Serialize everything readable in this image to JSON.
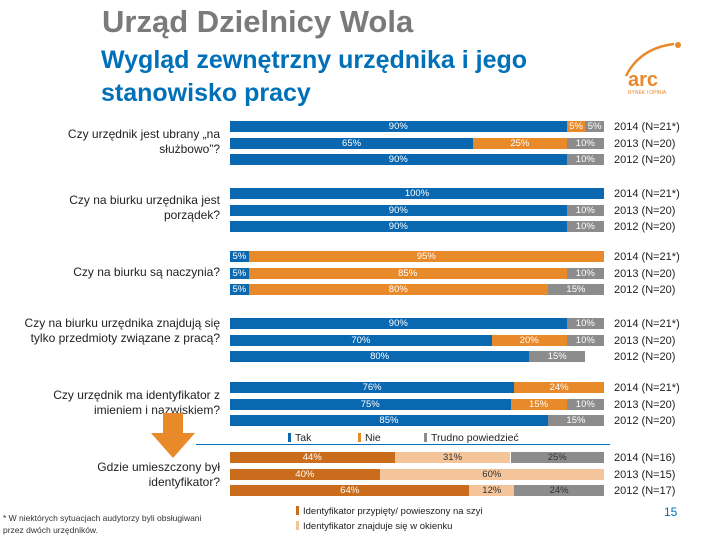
{
  "header": {
    "title": "Urząd Dzielnicy Wola",
    "subtitle": "Wygląd zewnętrzny urzędnika i jego stanowisko pracy"
  },
  "colors": {
    "tak": "#0a68b0",
    "nie": "#e8892a",
    "trudno": "#8c8c8c",
    "loc1": "#c96c1c",
    "loc2": "#f4c49a",
    "loc3": "#8c8c8c"
  },
  "logo": {
    "text": "arc",
    "tagline": "RYNEK I OPINIA"
  },
  "chart_data": [
    {
      "type": "bar",
      "stacked": "percent",
      "categories": [
        "Tak",
        "Nie",
        "Trudno powiedzieć"
      ],
      "title": "",
      "groups": [
        {
          "question": "Czy urzędnik jest ubrany „na służbowo”?",
          "years": [
            "2014 (N=21*)",
            "2013 (N=20)",
            "2012 (N=20)"
          ],
          "rows": [
            {
              "values": [
                90,
                5,
                5
              ],
              "labels": [
                "90%",
                "5%",
                "5%"
              ]
            },
            {
              "values": [
                65,
                25,
                10
              ],
              "labels": [
                "65%",
                "25%",
                "10%"
              ]
            },
            {
              "values": [
                90,
                0,
                10
              ],
              "labels": [
                "90%",
                "",
                "10%"
              ]
            }
          ]
        },
        {
          "question": "Czy na biurku urzędnika jest porządek?",
          "years": [
            "2014 (N=21*)",
            "2013 (N=20)",
            "2012 (N=20)"
          ],
          "rows": [
            {
              "values": [
                100,
                0,
                0
              ],
              "labels": [
                "100%",
                "",
                ""
              ]
            },
            {
              "values": [
                90,
                0,
                10
              ],
              "labels": [
                "90%",
                "",
                "10%"
              ]
            },
            {
              "values": [
                90,
                0,
                10
              ],
              "labels": [
                "90%",
                "",
                "10%"
              ]
            }
          ]
        },
        {
          "question": "Czy na biurku są naczynia?",
          "years": [
            "2014 (N=21*)",
            "2013 (N=20)",
            "2012 (N=20)"
          ],
          "rows": [
            {
              "values": [
                5,
                95,
                0
              ],
              "labels": [
                "5%",
                "95%",
                ""
              ]
            },
            {
              "values": [
                5,
                85,
                10
              ],
              "labels": [
                "5%",
                "85%",
                "10%"
              ]
            },
            {
              "values": [
                5,
                80,
                15
              ],
              "labels": [
                "5%",
                "80%",
                "15%"
              ]
            }
          ]
        },
        {
          "question": "Czy na biurku urzędnika znajdują się tylko przedmioty związane z pracą?",
          "years": [
            "2014 (N=21*)",
            "2013 (N=20)",
            "2012 (N=20)"
          ],
          "rows": [
            {
              "values": [
                90,
                0,
                10
              ],
              "labels": [
                "90%",
                "",
                "10%"
              ]
            },
            {
              "values": [
                70,
                20,
                10
              ],
              "labels": [
                "70%",
                "20%",
                "10%"
              ]
            },
            {
              "values": [
                80,
                0,
                15
              ],
              "labels": [
                "80%",
                "",
                "15%"
              ]
            }
          ]
        },
        {
          "question": "Czy urzędnik ma identyfikator z imieniem i nazwiskiem?",
          "years": [
            "2014 (N=21*)",
            "2013 (N=20)",
            "2012 (N=20)"
          ],
          "rows": [
            {
              "values": [
                76,
                24,
                0
              ],
              "labels": [
                "76%",
                "24%",
                ""
              ]
            },
            {
              "values": [
                75,
                15,
                10
              ],
              "labels": [
                "75%",
                "15%",
                "10%"
              ]
            },
            {
              "values": [
                85,
                0,
                15
              ],
              "labels": [
                "85%",
                "",
                "15%"
              ]
            }
          ]
        }
      ]
    },
    {
      "type": "bar",
      "stacked": "percent",
      "categories": [
        "Identyfikator przypięty/ powieszony na szyi",
        "Identyfikator znajduje się w okienku",
        "Trudno powiedzieć"
      ],
      "groups": [
        {
          "question": "Gdzie umieszczony był identyfikator?",
          "years": [
            "2014 (N=16)",
            "2013 (N=15)",
            "2012 (N=17)"
          ],
          "rows": [
            {
              "values": [
                44,
                31,
                25
              ],
              "labels": [
                "44%",
                "31%",
                "25%"
              ]
            },
            {
              "values": [
                40,
                60,
                0
              ],
              "labels": [
                "40%",
                "60%",
                ""
              ]
            },
            {
              "values": [
                64,
                12,
                24
              ],
              "labels": [
                "64%",
                "12%",
                "24%"
              ]
            }
          ]
        }
      ]
    }
  ],
  "legend_main": [
    "Tak",
    "Nie",
    "Trudno powiedzieć"
  ],
  "legend_location": [
    "Identyfikator przypięty/ powieszony na szyi",
    "Identyfikator znajduje się w okienku"
  ],
  "footnote": "* W niektórych sytuacjach audytorzy byli obsługiwani przez dwóch urzędników.",
  "page_number": "15"
}
